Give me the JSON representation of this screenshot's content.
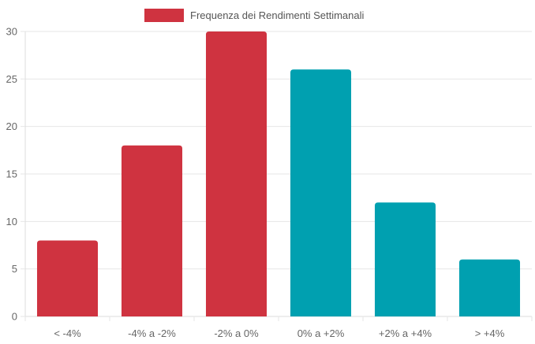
{
  "chart_data": {
    "type": "bar",
    "title": "",
    "xlabel": "",
    "ylabel": "",
    "categories": [
      "< -4%",
      "-4% a -2%",
      "-2% a 0%",
      "0% a +2%",
      "+2% a +4%",
      "> +4%"
    ],
    "series": [
      {
        "name": "Frequenza dei Rendimenti Settimanali",
        "values": [
          8,
          18,
          30,
          26,
          12,
          6
        ]
      }
    ],
    "bar_colors": [
      "#cf3340",
      "#cf3340",
      "#cf3340",
      "#00a0b0",
      "#00a0b0",
      "#00a0b0"
    ],
    "legend_color": "#cf3340",
    "ylim": [
      0,
      30
    ],
    "yticks": [
      0,
      5,
      10,
      15,
      20,
      25,
      30
    ],
    "grid": true,
    "legend_position": "top-center"
  }
}
